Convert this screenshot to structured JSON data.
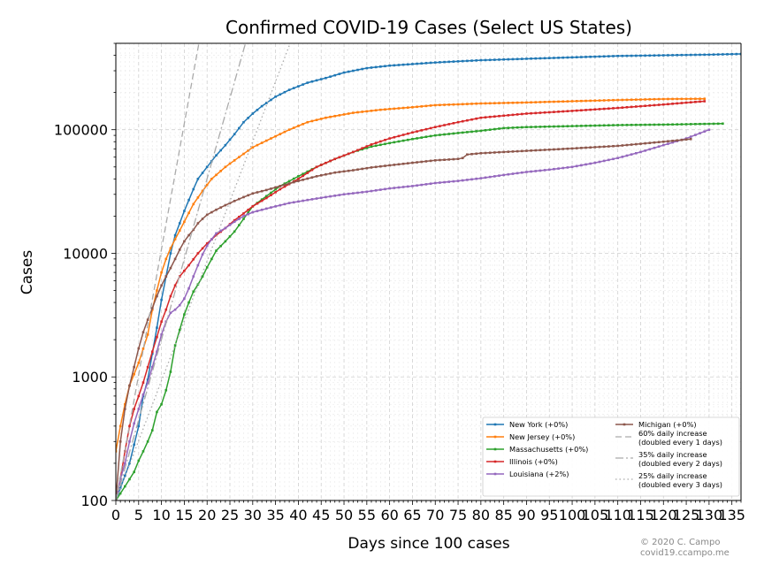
{
  "chart_data": {
    "type": "line",
    "title": "Confirmed COVID-19 Cases (Select US States)",
    "xlabel": "Days since 100 cases",
    "ylabel": "Cases",
    "x_scale": "linear",
    "y_scale": "log",
    "xlim": [
      0,
      137
    ],
    "ylim": [
      100,
      500000
    ],
    "x_ticks": [
      0,
      5,
      10,
      15,
      20,
      25,
      30,
      35,
      40,
      45,
      50,
      55,
      60,
      65,
      70,
      75,
      80,
      85,
      90,
      95,
      100,
      105,
      110,
      115,
      120,
      125,
      130,
      135
    ],
    "y_ticks": [
      100,
      1000,
      10000,
      100000
    ],
    "y_tick_labels": [
      "100",
      "1000",
      "10000",
      "100000"
    ],
    "grid": "dashed",
    "legend_position": "lower right",
    "series": [
      {
        "name": "New York (+0%)",
        "color": "#1f77b4",
        "points": [
          [
            0,
            100
          ],
          [
            3,
            200
          ],
          [
            5,
            400
          ],
          [
            6,
            700
          ],
          [
            7,
            950
          ],
          [
            9,
            2500
          ],
          [
            10,
            4200
          ],
          [
            11,
            6500
          ],
          [
            12,
            10000
          ],
          [
            13,
            14000
          ],
          [
            14,
            17500
          ],
          [
            15,
            22000
          ],
          [
            16,
            27000
          ],
          [
            17,
            33000
          ],
          [
            18,
            40000
          ],
          [
            20,
            50000
          ],
          [
            22,
            62000
          ],
          [
            24,
            75000
          ],
          [
            26,
            92000
          ],
          [
            28,
            115000
          ],
          [
            30,
            135000
          ],
          [
            32,
            155000
          ],
          [
            35,
            185000
          ],
          [
            38,
            210000
          ],
          [
            42,
            240000
          ],
          [
            46,
            262000
          ],
          [
            50,
            290000
          ],
          [
            55,
            315000
          ],
          [
            60,
            330000
          ],
          [
            70,
            350000
          ],
          [
            80,
            365000
          ],
          [
            90,
            375000
          ],
          [
            100,
            385000
          ],
          [
            110,
            395000
          ],
          [
            120,
            400000
          ],
          [
            130,
            405000
          ],
          [
            137,
            410000
          ]
        ]
      },
      {
        "name": "New Jersey (+0%)",
        "color": "#ff7f0e",
        "points": [
          [
            0,
            250
          ],
          [
            1,
            400
          ],
          [
            2,
            600
          ],
          [
            3,
            850
          ],
          [
            5,
            1300
          ],
          [
            7,
            2200
          ],
          [
            8,
            3500
          ],
          [
            9,
            5000
          ],
          [
            10,
            7000
          ],
          [
            11,
            9000
          ],
          [
            12,
            11000
          ],
          [
            13,
            13000
          ],
          [
            15,
            18000
          ],
          [
            17,
            25000
          ],
          [
            19,
            32000
          ],
          [
            21,
            40000
          ],
          [
            24,
            50000
          ],
          [
            27,
            60000
          ],
          [
            30,
            72000
          ],
          [
            34,
            85000
          ],
          [
            38,
            100000
          ],
          [
            42,
            115000
          ],
          [
            46,
            125000
          ],
          [
            52,
            137000
          ],
          [
            58,
            145000
          ],
          [
            65,
            152000
          ],
          [
            70,
            158000
          ],
          [
            80,
            163000
          ],
          [
            90,
            166000
          ],
          [
            100,
            170000
          ],
          [
            110,
            174000
          ],
          [
            120,
            177000
          ],
          [
            129,
            178000
          ]
        ]
      },
      {
        "name": "Massachusetts (+0%)",
        "color": "#2ca02c",
        "points": [
          [
            0,
            100
          ],
          [
            2,
            130
          ],
          [
            4,
            170
          ],
          [
            5,
            210
          ],
          [
            6,
            250
          ],
          [
            7,
            300
          ],
          [
            8,
            370
          ],
          [
            9,
            520
          ],
          [
            10,
            600
          ],
          [
            11,
            780
          ],
          [
            12,
            1100
          ],
          [
            13,
            1800
          ],
          [
            14,
            2400
          ],
          [
            15,
            3200
          ],
          [
            16,
            4000
          ],
          [
            17,
            4900
          ],
          [
            18,
            5600
          ],
          [
            19,
            6500
          ],
          [
            20,
            7700
          ],
          [
            21,
            9000
          ],
          [
            22,
            10500
          ],
          [
            24,
            12500
          ],
          [
            26,
            15000
          ],
          [
            28,
            19000
          ],
          [
            30,
            24000
          ],
          [
            33,
            29000
          ],
          [
            36,
            35000
          ],
          [
            40,
            42000
          ],
          [
            44,
            50000
          ],
          [
            48,
            58000
          ],
          [
            52,
            66000
          ],
          [
            56,
            73000
          ],
          [
            60,
            78000
          ],
          [
            65,
            84000
          ],
          [
            70,
            90000
          ],
          [
            75,
            94000
          ],
          [
            80,
            98000
          ],
          [
            85,
            103000
          ],
          [
            90,
            105000
          ],
          [
            100,
            107000
          ],
          [
            110,
            109000
          ],
          [
            120,
            110000
          ],
          [
            133,
            112000
          ]
        ]
      },
      {
        "name": "Illinois (+0%)",
        "color": "#d62728",
        "points": [
          [
            0,
            100
          ],
          [
            1,
            150
          ],
          [
            2,
            250
          ],
          [
            3,
            400
          ],
          [
            4,
            550
          ],
          [
            5,
            700
          ],
          [
            6,
            900
          ],
          [
            7,
            1200
          ],
          [
            8,
            1600
          ],
          [
            9,
            2100
          ],
          [
            10,
            2800
          ],
          [
            11,
            3500
          ],
          [
            12,
            4500
          ],
          [
            13,
            5500
          ],
          [
            14,
            6500
          ],
          [
            16,
            8000
          ],
          [
            18,
            10000
          ],
          [
            20,
            12000
          ],
          [
            22,
            14000
          ],
          [
            24,
            16000
          ],
          [
            26,
            18500
          ],
          [
            28,
            21000
          ],
          [
            30,
            24000
          ],
          [
            33,
            28000
          ],
          [
            36,
            33000
          ],
          [
            40,
            40000
          ],
          [
            44,
            50000
          ],
          [
            48,
            58000
          ],
          [
            52,
            66000
          ],
          [
            56,
            76000
          ],
          [
            60,
            85000
          ],
          [
            65,
            95000
          ],
          [
            70,
            105000
          ],
          [
            75,
            115000
          ],
          [
            80,
            125000
          ],
          [
            90,
            135000
          ],
          [
            100,
            142000
          ],
          [
            110,
            150000
          ],
          [
            120,
            160000
          ],
          [
            129,
            170000
          ]
        ]
      },
      {
        "name": "Louisiana (+2%)",
        "color": "#9467bd",
        "points": [
          [
            0,
            100
          ],
          [
            1,
            150
          ],
          [
            2,
            200
          ],
          [
            3,
            300
          ],
          [
            4,
            420
          ],
          [
            5,
            550
          ],
          [
            6,
            720
          ],
          [
            7,
            900
          ],
          [
            8,
            1200
          ],
          [
            9,
            1600
          ],
          [
            10,
            2200
          ],
          [
            11,
            2800
          ],
          [
            12,
            3300
          ],
          [
            13,
            3500
          ],
          [
            14,
            3800
          ],
          [
            15,
            4300
          ],
          [
            16,
            5200
          ],
          [
            17,
            6500
          ],
          [
            18,
            8000
          ],
          [
            19,
            9800
          ],
          [
            20,
            11500
          ],
          [
            21,
            13000
          ],
          [
            22,
            14500
          ],
          [
            24,
            16000
          ],
          [
            26,
            18000
          ],
          [
            28,
            20000
          ],
          [
            30,
            21500
          ],
          [
            34,
            23500
          ],
          [
            38,
            25500
          ],
          [
            42,
            27000
          ],
          [
            46,
            28500
          ],
          [
            50,
            30000
          ],
          [
            55,
            31500
          ],
          [
            60,
            33500
          ],
          [
            65,
            35000
          ],
          [
            70,
            37000
          ],
          [
            75,
            38500
          ],
          [
            80,
            40500
          ],
          [
            85,
            43000
          ],
          [
            90,
            45500
          ],
          [
            95,
            47500
          ],
          [
            100,
            50000
          ],
          [
            105,
            54000
          ],
          [
            110,
            59000
          ],
          [
            115,
            66000
          ],
          [
            120,
            75000
          ],
          [
            125,
            85000
          ],
          [
            130,
            100000
          ]
        ]
      },
      {
        "name": "Michigan (+0%)",
        "color": "#8c564b",
        "points": [
          [
            0,
            100
          ],
          [
            1,
            300
          ],
          [
            2,
            550
          ],
          [
            3,
            850
          ],
          [
            4,
            1200
          ],
          [
            5,
            1700
          ],
          [
            6,
            2300
          ],
          [
            7,
            2900
          ],
          [
            8,
            3600
          ],
          [
            9,
            4500
          ],
          [
            10,
            5500
          ],
          [
            11,
            6500
          ],
          [
            12,
            7600
          ],
          [
            13,
            9000
          ],
          [
            14,
            10700
          ],
          [
            15,
            12500
          ],
          [
            16,
            14000
          ],
          [
            17,
            15500
          ],
          [
            18,
            17500
          ],
          [
            19,
            19000
          ],
          [
            20,
            20500
          ],
          [
            22,
            22500
          ],
          [
            24,
            24500
          ],
          [
            26,
            26500
          ],
          [
            28,
            28500
          ],
          [
            30,
            30500
          ],
          [
            33,
            32500
          ],
          [
            36,
            35000
          ],
          [
            40,
            38500
          ],
          [
            44,
            42000
          ],
          [
            48,
            45000
          ],
          [
            52,
            47000
          ],
          [
            56,
            49500
          ],
          [
            60,
            51500
          ],
          [
            65,
            54000
          ],
          [
            70,
            56500
          ],
          [
            75,
            58000
          ],
          [
            76,
            59000
          ],
          [
            77,
            63000
          ],
          [
            80,
            64500
          ],
          [
            85,
            66000
          ],
          [
            90,
            67500
          ],
          [
            100,
            70500
          ],
          [
            110,
            74000
          ],
          [
            120,
            80000
          ],
          [
            126,
            84000
          ]
        ]
      },
      {
        "name": "60% daily increase\n(doubled every 1 days)",
        "color": "#aaaaaa",
        "dash": "7 4",
        "points": [
          [
            0,
            100
          ],
          [
            18.2,
            500000
          ]
        ]
      },
      {
        "name": "35% daily increase\n(doubled every 2 days)",
        "color": "#aaaaaa",
        "dash": "9 3 2 3",
        "points": [
          [
            0,
            100
          ],
          [
            28.4,
            500000
          ]
        ]
      },
      {
        "name": "25% daily increase\n(doubled every 3 days)",
        "color": "#aaaaaa",
        "dash": "1.5 3",
        "points": [
          [
            0,
            100
          ],
          [
            38.2,
            500000
          ]
        ]
      }
    ],
    "legend_entries": [
      "New York (+0%)",
      "New Jersey (+0%)",
      "Massachusetts (+0%)",
      "Illinois (+0%)",
      "Louisiana (+2%)",
      "Michigan (+0%)",
      "60% daily increase\n(doubled every 1 days)",
      "35% daily increase\n(doubled every 2 days)",
      "25% daily increase\n(doubled every 3 days)"
    ]
  },
  "credit": {
    "line1": "© 2020 C. Campo",
    "line2": "covid19.ccampo.me"
  }
}
